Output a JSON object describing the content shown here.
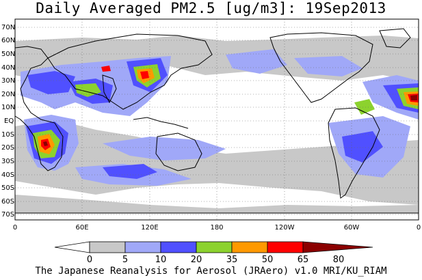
{
  "title": "Daily Averaged PM2.5 [ug/m3]: 19Sep2013",
  "credit": "The Japanese Reanalysis for Aerosol (JRAero) v1.0 MRI/KU_RIAM",
  "lat_labels": [
    "70N",
    "60N",
    "50N",
    "40N",
    "30N",
    "20N",
    "10N",
    "EQ",
    "10S",
    "20S",
    "30S",
    "40S",
    "50S",
    "60S",
    "70S"
  ],
  "lon_labels": [
    "0",
    "60E",
    "120E",
    "180",
    "120W",
    "60W",
    "0"
  ],
  "colorbar": {
    "ticks": [
      "0",
      "5",
      "10",
      "20",
      "35",
      "50",
      "65",
      "80"
    ],
    "colors": [
      "#ffffff",
      "#c8c8c8",
      "#a0a8f8",
      "#5050ff",
      "#8cd22e",
      "#ff9900",
      "#ff0000",
      "#8b0000"
    ]
  },
  "legend_classes": [
    "0-5",
    "5-10",
    "10-20",
    "20-35",
    "35-50",
    "50-65",
    "65-80",
    ">80"
  ]
}
